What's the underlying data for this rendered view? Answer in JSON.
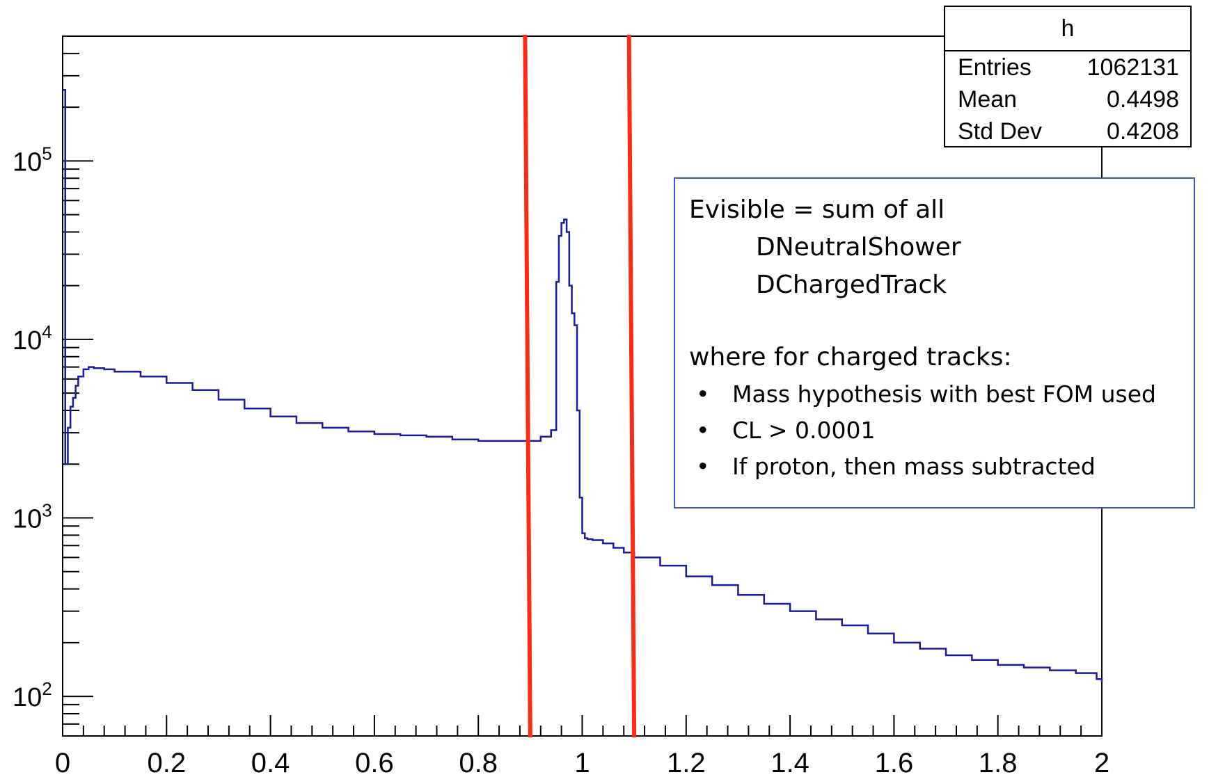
{
  "chart_data": {
    "type": "line",
    "title": "",
    "xlabel": "",
    "ylabel": "",
    "xlim": [
      0,
      2
    ],
    "ylim": [
      60,
      500000
    ],
    "yscale": "log",
    "grid": false,
    "line_color": "#1a1aa0",
    "x_tick_labels": [
      "0",
      "0.2",
      "0.4",
      "0.6",
      "0.8",
      "1",
      "1.2",
      "1.4",
      "1.6",
      "1.8",
      "2"
    ],
    "y_tick_labels": [
      {
        "base": "10",
        "exp": "2"
      },
      {
        "base": "10",
        "exp": "3"
      },
      {
        "base": "10",
        "exp": "4"
      },
      {
        "base": "10",
        "exp": "5"
      }
    ],
    "series": [
      {
        "x": [
          0.0,
          0.005,
          0.01,
          0.015,
          0.02,
          0.025,
          0.03,
          0.04,
          0.05,
          0.06,
          0.08,
          0.1,
          0.15,
          0.2,
          0.25,
          0.3,
          0.35,
          0.4,
          0.45,
          0.5,
          0.55,
          0.6,
          0.65,
          0.7,
          0.75,
          0.8,
          0.85,
          0.9,
          0.92,
          0.94,
          0.95,
          0.955,
          0.96,
          0.965,
          0.97,
          0.975,
          0.98,
          0.985,
          0.99,
          0.995,
          1.0,
          1.005,
          1.01,
          1.02,
          1.04,
          1.06,
          1.08,
          1.1,
          1.15,
          1.2,
          1.25,
          1.3,
          1.35,
          1.4,
          1.45,
          1.5,
          1.55,
          1.6,
          1.65,
          1.7,
          1.75,
          1.8,
          1.85,
          1.9,
          1.95,
          1.99,
          2.0
        ],
        "y": [
          250000,
          2000,
          3200,
          4200,
          4700,
          5500,
          6200,
          6800,
          7000,
          6900,
          6800,
          6600,
          6200,
          5700,
          5200,
          4600,
          4100,
          3700,
          3400,
          3200,
          3050,
          2950,
          2900,
          2850,
          2750,
          2700,
          2700,
          2700,
          2850,
          3100,
          21000,
          38000,
          45000,
          47000,
          40000,
          20000,
          14000,
          12000,
          4000,
          1300,
          820,
          770,
          760,
          750,
          720,
          680,
          640,
          600,
          540,
          470,
          420,
          370,
          330,
          300,
          270,
          250,
          225,
          200,
          185,
          170,
          160,
          150,
          145,
          140,
          135,
          125,
          120
        ]
      }
    ],
    "cut_lines": [
      {
        "x_bottom": 0.9,
        "x_top": 0.89,
        "color": "#ff2a12"
      },
      {
        "x_bottom": 1.1,
        "x_top": 1.09,
        "color": "#ff2a12"
      }
    ]
  },
  "stats": {
    "title": "h",
    "rows": [
      {
        "label": "Entries",
        "value": "1062131"
      },
      {
        "label": "Mean",
        "value": "0.4498"
      },
      {
        "label": "Std Dev",
        "value": "0.4208"
      }
    ]
  },
  "note": {
    "line1": "Evisible = sum of all",
    "line2": "DNeutralShower",
    "line3": "DChargedTrack",
    "line4": "where for charged tracks:",
    "bullet": "•",
    "bullets": [
      "Mass hypothesis with best FOM used",
      "CL > 0.0001",
      "If proton, then mass subtracted"
    ]
  }
}
